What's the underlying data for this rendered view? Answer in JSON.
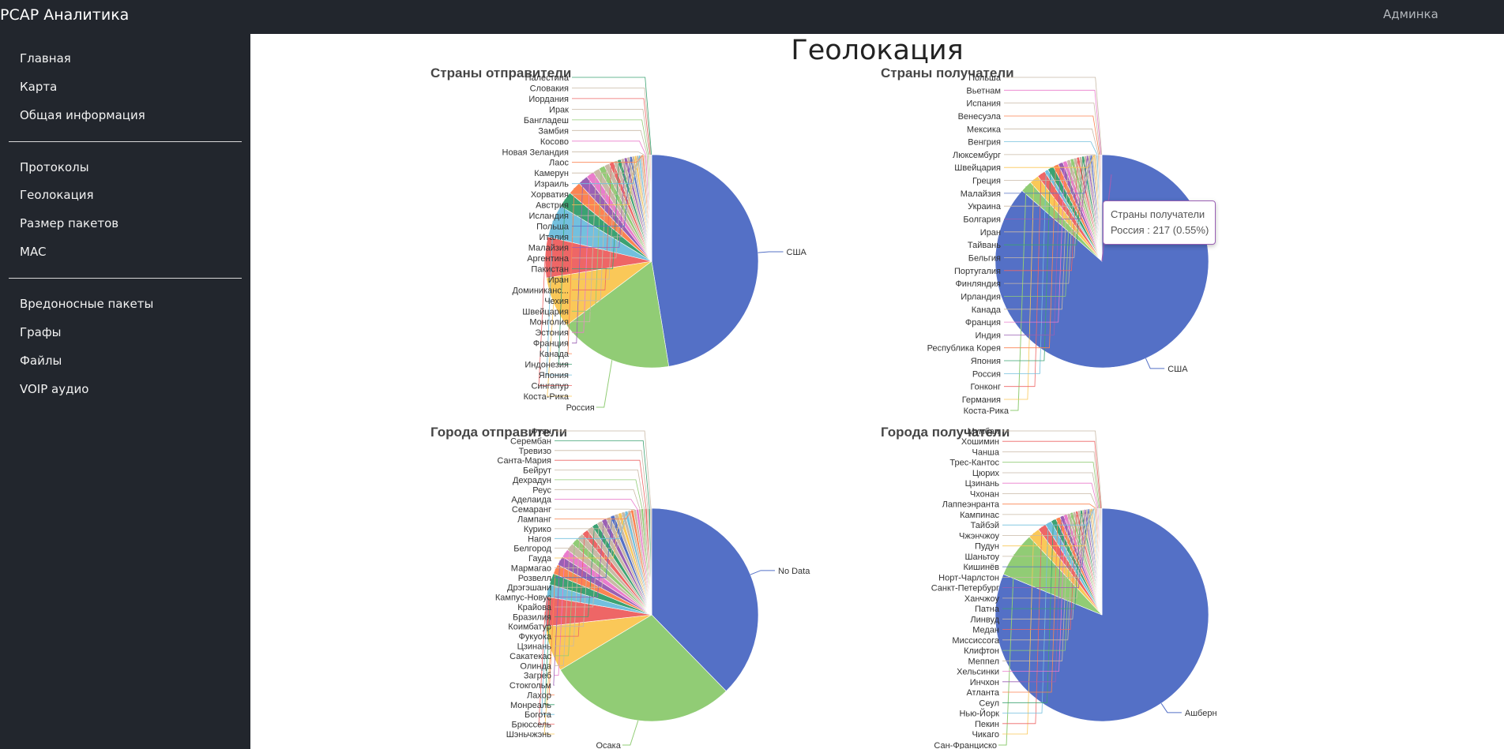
{
  "header": {
    "brand": "PCAP Аналитика",
    "user": "Админка"
  },
  "sidebar": {
    "groups": [
      [
        "Главная",
        "Карта",
        "Общая информация"
      ],
      [
        "Протоколы",
        "Геолокация",
        "Размер пакетов",
        "MAC"
      ],
      [
        "Вредоносные пакеты",
        "Графы",
        "Файлы",
        "VOIP аудио"
      ]
    ]
  },
  "page": {
    "title": "Геолокация"
  },
  "tooltip": {
    "title": "Страны получатели",
    "text": "Россия : 217 (0.55%)"
  },
  "colors": {
    "palette": [
      "#5470c6",
      "#91cc75",
      "#fac858",
      "#ee6666",
      "#73c0de",
      "#3ba272",
      "#fc8452",
      "#9a60b4",
      "#ea7ccc"
    ],
    "tail": "#c9b9a6",
    "header_bg": "#22262d"
  },
  "chart_data": [
    {
      "type": "pie",
      "title": "Страны отправители",
      "slices": [
        [
          "США",
          47.5
        ],
        [
          "Россия",
          17.3
        ],
        [
          "Коста-Рика",
          7.8
        ],
        [
          "Сингапур",
          6.2
        ],
        [
          "Япония",
          5.0
        ],
        [
          "Индонезия",
          2.4
        ],
        [
          "Канада",
          2.0
        ],
        [
          "Франция",
          1.5
        ],
        [
          "Эстония",
          1.2
        ],
        [
          "Монголия",
          1.0
        ],
        [
          "Швейцария",
          0.9
        ],
        [
          "Чехия",
          0.8
        ],
        [
          "Доминиканс...",
          0.7
        ],
        [
          "Иран",
          0.6
        ],
        [
          "Пакистан",
          0.55
        ],
        [
          "Аргентина",
          0.5
        ],
        [
          "Малайзия",
          0.45
        ],
        [
          "Италия",
          0.4
        ],
        [
          "Польша",
          0.38
        ],
        [
          "Исландия",
          0.35
        ],
        [
          "Австрия",
          0.33
        ],
        [
          "Хорватия",
          0.3
        ],
        [
          "Израиль",
          0.28
        ],
        [
          "Камерун",
          0.26
        ],
        [
          "Лаос",
          0.24
        ],
        [
          "Новая Зеландия",
          0.22
        ],
        [
          "Косово",
          0.2
        ],
        [
          "Замбия",
          0.18
        ],
        [
          "Бангладеш",
          0.16
        ],
        [
          "Ирак",
          0.14
        ],
        [
          "Иордания",
          0.12
        ],
        [
          "Словакия",
          0.1
        ],
        [
          "Палестина",
          0.08
        ]
      ]
    },
    {
      "type": "pie",
      "title": "Страны получатели",
      "slices": [
        [
          "США",
          84.0
        ],
        [
          "Коста-Рика",
          1.7
        ],
        [
          "Германия",
          1.4
        ],
        [
          "Гонконг",
          1.2
        ],
        [
          "Россия",
          0.55
        ],
        [
          "Япония",
          0.9
        ],
        [
          "Республика Корея",
          0.8
        ],
        [
          "Индия",
          0.7
        ],
        [
          "Франция",
          0.6
        ],
        [
          "Канада",
          0.55
        ],
        [
          "Ирландия",
          0.5
        ],
        [
          "Финляндия",
          0.45
        ],
        [
          "Португалия",
          0.4
        ],
        [
          "Бельгия",
          0.38
        ],
        [
          "Тайвань",
          0.35
        ],
        [
          "Иран",
          0.32
        ],
        [
          "Болгария",
          0.3
        ],
        [
          "Украина",
          0.28
        ],
        [
          "Малайзия",
          0.26
        ],
        [
          "Греция",
          0.24
        ],
        [
          "Швейцария",
          0.22
        ],
        [
          "Люксембург",
          0.2
        ],
        [
          "Венгрия",
          0.18
        ],
        [
          "Мексика",
          0.16
        ],
        [
          "Венесуэла",
          0.14
        ],
        [
          "Испания",
          0.12
        ],
        [
          "Вьетнам",
          0.1
        ],
        [
          "Польша",
          0.08
        ]
      ]
    },
    {
      "type": "pie",
      "title": "Города отправители",
      "slices": [
        [
          "No Data",
          35.5
        ],
        [
          "Осака",
          27.0
        ],
        [
          "Шэньчжэнь",
          6.5
        ],
        [
          "Брюссель",
          4.2
        ],
        [
          "Богота",
          1.8
        ],
        [
          "Монреаль",
          1.6
        ],
        [
          "Лахор",
          1.4
        ],
        [
          "Стокгольм",
          1.3
        ],
        [
          "Загреб",
          1.2
        ],
        [
          "Олинда",
          1.1
        ],
        [
          "Сакатекас",
          1.0
        ],
        [
          "Цзинань",
          0.95
        ],
        [
          "Фукуока",
          0.9
        ],
        [
          "Коимбатур",
          0.85
        ],
        [
          "Бразилия",
          0.8
        ],
        [
          "Крайова",
          0.75
        ],
        [
          "Кампус-Новус",
          0.7
        ],
        [
          "Дрэгэшани",
          0.65
        ],
        [
          "Розвелл",
          0.6
        ],
        [
          "Мармагао",
          0.55
        ],
        [
          "Гауда",
          0.5
        ],
        [
          "Белгород",
          0.48
        ],
        [
          "Нагоя",
          0.45
        ],
        [
          "Курико",
          0.42
        ],
        [
          "Лампанг",
          0.4
        ],
        [
          "Семаранг",
          0.38
        ],
        [
          "Аделаида",
          0.36
        ],
        [
          "Реус",
          0.34
        ],
        [
          "Дехрадун",
          0.3
        ],
        [
          "Бейрут",
          0.28
        ],
        [
          "Санта-Мария",
          0.26
        ],
        [
          "Тревизо",
          0.24
        ],
        [
          "Серембан",
          0.22
        ],
        [
          "Фуян",
          0.2
        ]
      ]
    },
    {
      "type": "pie",
      "title": "Города получатели",
      "slices": [
        [
          "Ашберн",
          83.0
        ],
        [
          "Сан-Франциско",
          7.0
        ],
        [
          "Чикаго",
          1.8
        ],
        [
          "Пекин",
          1.3
        ],
        [
          "Нью-Йорк",
          1.0
        ],
        [
          "Сеул",
          0.8
        ],
        [
          "Атланта",
          0.7
        ],
        [
          "Инчхон",
          0.6
        ],
        [
          "Хельсинки",
          0.55
        ],
        [
          "Меппел",
          0.5
        ],
        [
          "Клифтон",
          0.45
        ],
        [
          "Миссиссога",
          0.4
        ],
        [
          "Медан",
          0.38
        ],
        [
          "Линвуд",
          0.35
        ],
        [
          "Патна",
          0.32
        ],
        [
          "Ханчжоу",
          0.3
        ],
        [
          "Санкт-Петербург",
          0.28
        ],
        [
          "Норт-Чарлстон",
          0.26
        ],
        [
          "Кишинёв",
          0.24
        ],
        [
          "Шаньтоу",
          0.22
        ],
        [
          "Пудун",
          0.2
        ],
        [
          "Чжэнчжоу",
          0.19
        ],
        [
          "Тайбэй",
          0.18
        ],
        [
          "Кампинас",
          0.17
        ],
        [
          "Лаппеэнранта",
          0.16
        ],
        [
          "Чхонан",
          0.15
        ],
        [
          "Цзинань",
          0.14
        ],
        [
          "Цюрих",
          0.13
        ],
        [
          "Трес-Кантос",
          0.12
        ],
        [
          "Чанша",
          0.11
        ],
        [
          "Хошимин",
          0.1
        ],
        [
          "Мумбаи",
          0.09
        ]
      ]
    }
  ]
}
